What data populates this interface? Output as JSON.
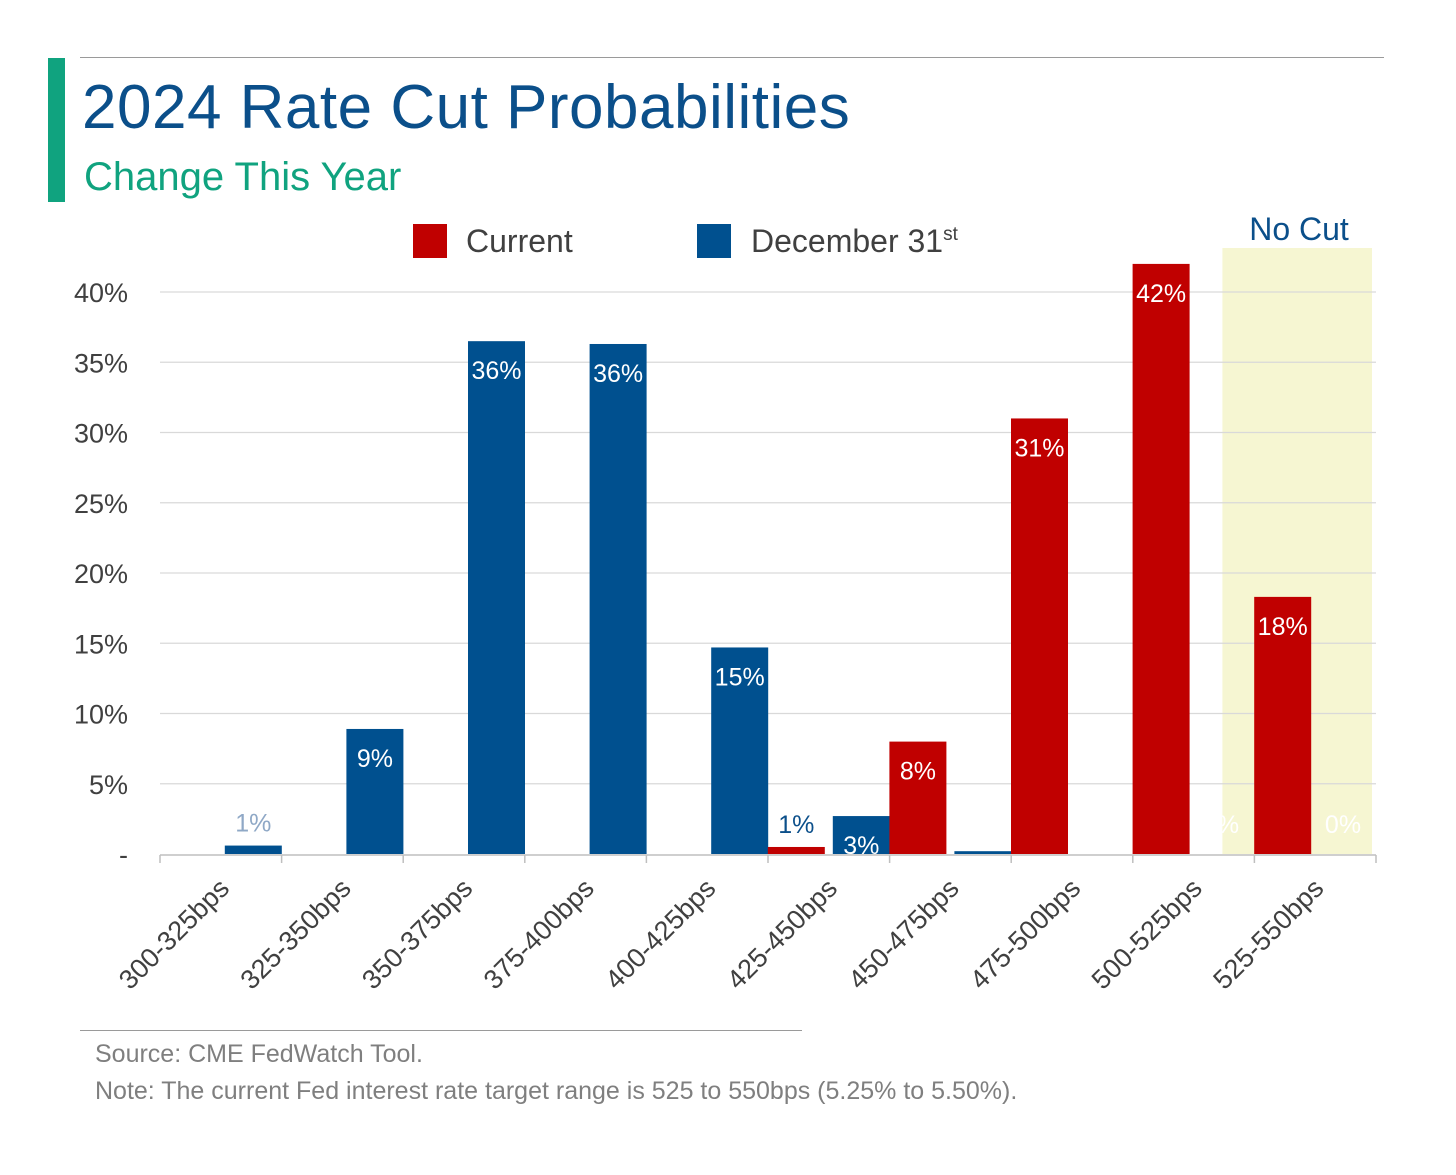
{
  "header": {
    "title": "2024 Rate Cut Probabilities",
    "subtitle": "Change This Year"
  },
  "footer": {
    "source": "Source: CME FedWatch Tool.",
    "note": "Note: The current Fed interest rate target range is 525 to 550bps (5.25% to 5.50%)."
  },
  "colors": {
    "current": "#c00000",
    "december": "#00508f",
    "accent": "#10a37f",
    "title": "#0b4f8a",
    "no_cut_band": "#f6f6d2"
  },
  "chart_data": {
    "type": "bar",
    "title": "2024 Rate Cut Probabilities",
    "subtitle": "Change This Year",
    "categories": [
      "300-325bps",
      "325-350bps",
      "350-375bps",
      "375-400bps",
      "400-425bps",
      "425-450bps",
      "450-475bps",
      "475-500bps",
      "500-525bps",
      "525-550bps"
    ],
    "series": [
      {
        "name": "Current",
        "values": [
          0,
          0,
          0,
          0,
          0,
          0.5,
          8,
          31,
          42,
          18.3
        ],
        "labels": [
          "",
          "",
          "",
          "",
          "",
          "1%",
          "8%",
          "31%",
          "42%",
          "18%"
        ]
      },
      {
        "name": "December 31st",
        "values": [
          0.6,
          8.9,
          36.5,
          36.3,
          14.7,
          2.7,
          0.2,
          0,
          0,
          0
        ],
        "labels": [
          "1%",
          "9%",
          "36%",
          "36%",
          "15%",
          "3%",
          "",
          "",
          "%",
          "0%"
        ]
      }
    ],
    "legend": {
      "position": "top",
      "current": "Current",
      "december": "December 31",
      "december_sup": "st"
    },
    "ylim": [
      0,
      40
    ],
    "yticks": [
      0,
      5,
      10,
      15,
      20,
      25,
      30,
      35,
      40
    ],
    "ytick_labels": [
      "-",
      "5%",
      "10%",
      "15%",
      "20%",
      "25%",
      "30%",
      "35%",
      "40%"
    ],
    "highlight": {
      "category": "525-550bps",
      "label": "No Cut"
    },
    "grid": true
  }
}
